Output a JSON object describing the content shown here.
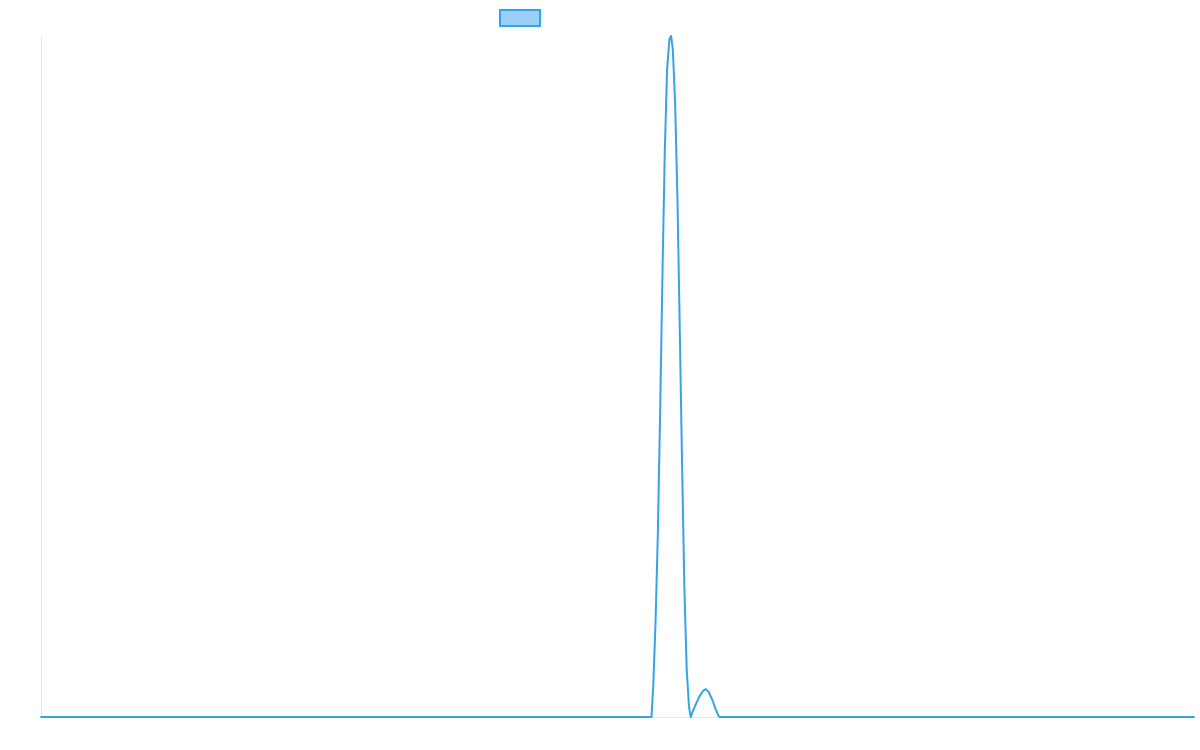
{
  "chart_data": {
    "type": "line",
    "title": "",
    "xlabel": "",
    "ylabel": "",
    "xlim": [
      0,
      1000
    ],
    "ylim": [
      0,
      1
    ],
    "grid": false,
    "legend_position": "top-center",
    "series": [
      {
        "color_stroke": "#36a2eb",
        "color_fill": "#9ad0f5",
        "points": [
          [
            0,
            0
          ],
          [
            529.5,
            0
          ],
          [
            531.0,
            0.045
          ],
          [
            533.0,
            0.14
          ],
          [
            535.0,
            0.27
          ],
          [
            537.0,
            0.45
          ],
          [
            539.0,
            0.65
          ],
          [
            541.0,
            0.83
          ],
          [
            543.0,
            0.95
          ],
          [
            545.0,
            0.995
          ],
          [
            546.5,
            1.0
          ],
          [
            548.0,
            0.98
          ],
          [
            550.0,
            0.9
          ],
          [
            552.0,
            0.76
          ],
          [
            554.0,
            0.57
          ],
          [
            556.0,
            0.37
          ],
          [
            558.0,
            0.19
          ],
          [
            560.0,
            0.07
          ],
          [
            562.0,
            0.015
          ],
          [
            563.5,
            0
          ],
          [
            565.0,
            0.007
          ],
          [
            568.0,
            0.019
          ],
          [
            571.0,
            0.03
          ],
          [
            574.0,
            0.038
          ],
          [
            576.5,
            0.041
          ],
          [
            579.0,
            0.037
          ],
          [
            582.0,
            0.026
          ],
          [
            585.0,
            0.012
          ],
          [
            587.5,
            0.002
          ],
          [
            588.5,
            0
          ],
          [
            1000,
            0
          ]
        ]
      }
    ]
  }
}
